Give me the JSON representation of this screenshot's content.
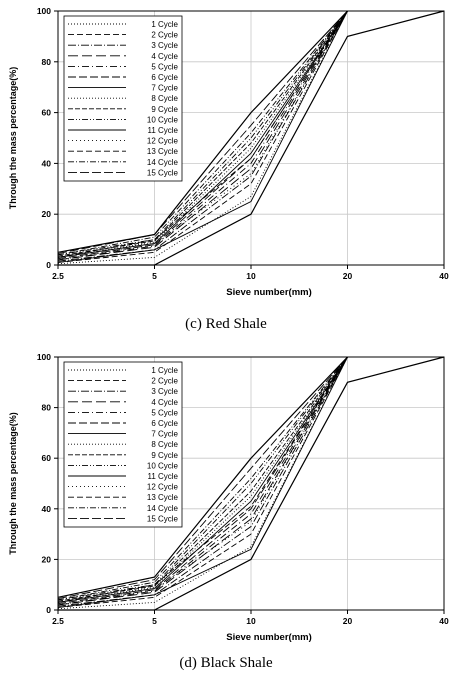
{
  "chart_data": [
    {
      "type": "line",
      "caption": "(c)  Red  Shale",
      "xlabel": "Sieve number(mm)",
      "ylabel": "Through the mass percentage(%)",
      "x_ticks": [
        "2.5",
        "5",
        "10",
        "20",
        "40"
      ],
      "ylim": [
        0,
        100
      ],
      "y_ticks": [
        0,
        20,
        40,
        60,
        80,
        100
      ],
      "grid": true,
      "legend_position": "top-left",
      "envelope": {
        "lower": {
          "x": [
            "2.5",
            "5",
            "10",
            "20",
            "40"
          ],
          "values": [
            0,
            0,
            20,
            90,
            100
          ]
        },
        "upper": {
          "x": [
            "2.5",
            "5",
            "10",
            "20"
          ],
          "values": [
            5,
            12,
            60,
            100
          ]
        }
      },
      "series": [
        {
          "name": "1 Cycle",
          "values": [
            0.5,
            3,
            27,
            100
          ]
        },
        {
          "name": "2 Cycle",
          "values": [
            1,
            5,
            32,
            100
          ]
        },
        {
          "name": "3 Cycle",
          "values": [
            1.5,
            6,
            35,
            100
          ]
        },
        {
          "name": "4 Cycle",
          "values": [
            2,
            7,
            38,
            100
          ]
        },
        {
          "name": "5 Cycle",
          "values": [
            2,
            7.5,
            40,
            100
          ]
        },
        {
          "name": "6 Cycle",
          "values": [
            2.5,
            8,
            42,
            100
          ]
        },
        {
          "name": "7 Cycle",
          "values": [
            3,
            8.5,
            44,
            100
          ]
        },
        {
          "name": "8 Cycle",
          "values": [
            3,
            9,
            46,
            100
          ]
        },
        {
          "name": "9 Cycle",
          "values": [
            3.5,
            9.5,
            48,
            100
          ]
        },
        {
          "name": "10 Cycle",
          "values": [
            4,
            10,
            50,
            100
          ]
        },
        {
          "name": "11 Cycle",
          "values": [
            1,
            6,
            25,
            100
          ]
        },
        {
          "name": "12 Cycle",
          "values": [
            2,
            8,
            36,
            100
          ]
        },
        {
          "name": "13 Cycle",
          "values": [
            3,
            10,
            42,
            100
          ]
        },
        {
          "name": "14 Cycle",
          "values": [
            4,
            11,
            52,
            100
          ]
        },
        {
          "name": "15 Cycle",
          "values": [
            4.5,
            12,
            55,
            100
          ]
        }
      ]
    },
    {
      "type": "line",
      "caption": "(d)  Black  Shale",
      "xlabel": "Sieve number(mm)",
      "ylabel": "Through the mass percentage(%)",
      "x_ticks": [
        "2.5",
        "5",
        "10",
        "20",
        "40"
      ],
      "ylim": [
        0,
        100
      ],
      "y_ticks": [
        0,
        20,
        40,
        60,
        80,
        100
      ],
      "grid": true,
      "legend_position": "top-left",
      "envelope": {
        "lower": {
          "x": [
            "2.5",
            "5",
            "10",
            "20",
            "40"
          ],
          "values": [
            0,
            0,
            20,
            90,
            100
          ]
        },
        "upper": {
          "x": [
            "2.5",
            "5",
            "10",
            "20"
          ],
          "values": [
            5,
            13,
            60,
            100
          ]
        }
      },
      "series": [
        {
          "name": "1 Cycle",
          "values": [
            0.5,
            3,
            25,
            100
          ]
        },
        {
          "name": "2 Cycle",
          "values": [
            1,
            5,
            30,
            100
          ]
        },
        {
          "name": "3 Cycle",
          "values": [
            1.5,
            6,
            33,
            100
          ]
        },
        {
          "name": "4 Cycle",
          "values": [
            2,
            7,
            36,
            100
          ]
        },
        {
          "name": "5 Cycle",
          "values": [
            2,
            7.5,
            38,
            100
          ]
        },
        {
          "name": "6 Cycle",
          "values": [
            2.5,
            8,
            40,
            100
          ]
        },
        {
          "name": "7 Cycle",
          "values": [
            3,
            8.5,
            43,
            100
          ]
        },
        {
          "name": "8 Cycle",
          "values": [
            3,
            9,
            45,
            100
          ]
        },
        {
          "name": "9 Cycle",
          "values": [
            3.5,
            9.5,
            47,
            100
          ]
        },
        {
          "name": "10 Cycle",
          "values": [
            4,
            10,
            50,
            100
          ]
        },
        {
          "name": "11 Cycle",
          "values": [
            1,
            6,
            24,
            100
          ]
        },
        {
          "name": "12 Cycle",
          "values": [
            2,
            8,
            35,
            100
          ]
        },
        {
          "name": "13 Cycle",
          "values": [
            3,
            10,
            41,
            100
          ]
        },
        {
          "name": "14 Cycle",
          "values": [
            4,
            11,
            52,
            100
          ]
        },
        {
          "name": "15 Cycle",
          "values": [
            4.5,
            12,
            56,
            100
          ]
        }
      ]
    }
  ]
}
